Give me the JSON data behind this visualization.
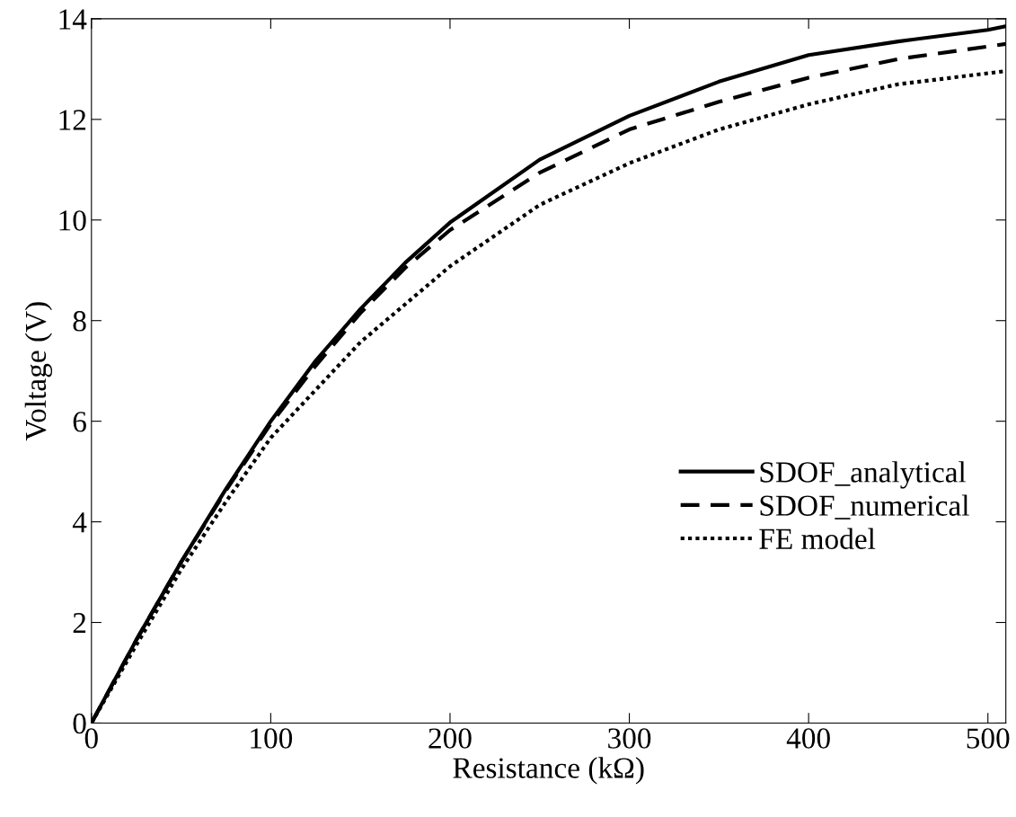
{
  "chart_data": {
    "type": "line",
    "xlabel": "Resistance (kΩ)",
    "ylabel": "Voltage (V)",
    "xlim": [
      0,
      510
    ],
    "ylim": [
      0,
      14
    ],
    "xticks": [
      0,
      100,
      200,
      300,
      400,
      500
    ],
    "yticks": [
      0,
      2,
      4,
      6,
      8,
      10,
      12,
      14
    ],
    "grid": false,
    "legend": "bottom right",
    "marker": "none",
    "series": [
      {
        "name": "SDOF_analytical",
        "color": "#000000",
        "line_style": "solid",
        "x": [
          0,
          25,
          50,
          75,
          100,
          125,
          150,
          175,
          200,
          250,
          300,
          350,
          400,
          450,
          500,
          510
        ],
        "values": [
          0,
          1.65,
          3.2,
          4.65,
          6.0,
          7.2,
          8.23,
          9.15,
          9.95,
          11.2,
          12.07,
          12.75,
          13.28,
          13.55,
          13.78,
          13.85
        ]
      },
      {
        "name": "SDOF_numerical",
        "color": "#000000",
        "line_style": "dashed",
        "x": [
          0,
          25,
          50,
          75,
          100,
          125,
          150,
          175,
          200,
          250,
          300,
          350,
          400,
          450,
          510
        ],
        "values": [
          0,
          1.65,
          3.2,
          4.62,
          5.95,
          7.1,
          8.15,
          9.05,
          9.8,
          10.94,
          11.8,
          12.35,
          12.83,
          13.2,
          13.5
        ]
      },
      {
        "name": "FE model",
        "color": "#000000",
        "line_style": "dotted",
        "x": [
          0,
          25,
          50,
          75,
          100,
          150,
          200,
          250,
          300,
          350,
          400,
          450,
          510
        ],
        "values": [
          0,
          1.55,
          3.05,
          4.4,
          5.67,
          7.57,
          9.08,
          10.3,
          11.13,
          11.8,
          12.3,
          12.7,
          12.96
        ]
      }
    ]
  }
}
